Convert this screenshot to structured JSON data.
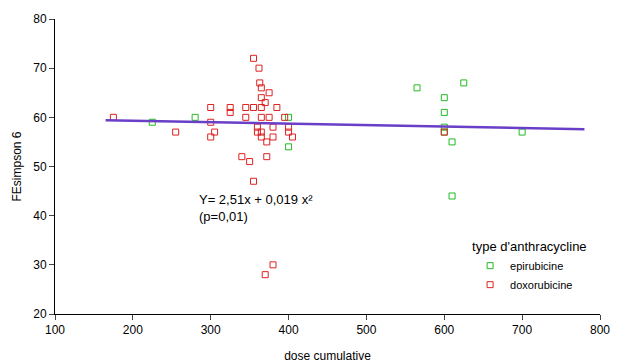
{
  "chart_data": {
    "type": "scatter",
    "x_label": "dose cumulative",
    "y_label": "FEsimpson 6",
    "legend_title": "type d'anthracycline",
    "annotations": [
      "Y= 2,51x + 0,019 x²",
      "(p=0,01)"
    ],
    "xlim": [
      100,
      800
    ],
    "xticks": [
      100,
      200,
      300,
      400,
      500,
      600,
      700,
      800
    ],
    "ylim": [
      20,
      80
    ],
    "yticks": [
      20,
      30,
      40,
      50,
      60,
      70,
      80
    ],
    "grid": false,
    "legend": "lower right",
    "series": [
      {
        "name": "epirubicine",
        "color": "#22bb22",
        "marker": "square-open",
        "x": [
          225,
          280,
          400,
          400,
          565,
          600,
          600,
          600,
          600,
          610,
          610,
          625,
          700
        ],
        "values": [
          59,
          60,
          60,
          54,
          66,
          64,
          61,
          58,
          57,
          55,
          44,
          67,
          57
        ]
      },
      {
        "name": "doxorubicine",
        "color": "#dd2222",
        "marker": "square-open",
        "x": [
          175,
          255,
          300,
          300,
          300,
          305,
          325,
          325,
          340,
          345,
          345,
          350,
          355,
          355,
          355,
          360,
          360,
          362,
          363,
          365,
          365,
          365,
          365,
          365,
          365,
          370,
          370,
          372,
          372,
          375,
          375,
          380,
          380,
          380,
          385,
          395,
          400,
          400,
          405,
          600
        ],
        "values": [
          60,
          57,
          62,
          59,
          56,
          57,
          62,
          61,
          52,
          62,
          60,
          51,
          72,
          47,
          62,
          58,
          57,
          70,
          67,
          66,
          64,
          62,
          60,
          57,
          56,
          63,
          28,
          55,
          52,
          60,
          65,
          58,
          56,
          30,
          62,
          60,
          58,
          57,
          56,
          57
        ]
      },
      {
        "type": "line",
        "color": "#6a3fc8",
        "line_style": "solid",
        "x": [
          165,
          780
        ],
        "values": [
          59.4,
          57.6
        ]
      }
    ]
  }
}
